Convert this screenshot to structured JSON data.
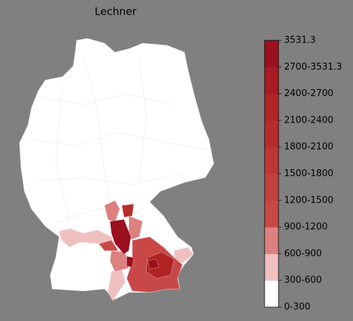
{
  "title": "Lechner",
  "colorbar": {
    "labels": [
      "0-300",
      "300-600",
      "600-900",
      "900-1200",
      "1200-1500",
      "1500-1800",
      "1800-2100",
      "2100-2400",
      "2400-2700",
      "2700-3531.3",
      "3531.3"
    ],
    "colors": [
      "#ffffff",
      "#f0c0c0",
      "#dc8080",
      "#c84848",
      "#c43f3f",
      "#bf3535",
      "#b92c2c",
      "#b22323",
      "#a91a22",
      "#9b0f1e"
    ]
  }
}
